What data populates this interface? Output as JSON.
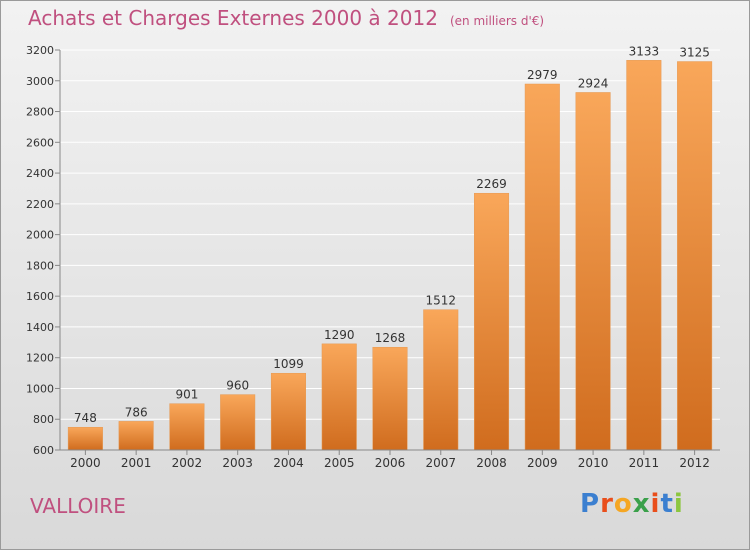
{
  "title": "Achats et Charges Externes 2000 à 2012",
  "subtitle": "(en milliers d'€)",
  "commune": "VALLOIRE",
  "brand": {
    "letters": [
      "P",
      "r",
      "o",
      "x",
      "i",
      "t",
      "i"
    ],
    "colors": [
      "#3b7fd0",
      "#e94e1b",
      "#f5a623",
      "#3aa04a",
      "#e94e1b",
      "#3b7fd0",
      "#8cc63f"
    ]
  },
  "colors": {
    "bar_light": "#f9a75a",
    "bar_dark": "#d06c1e",
    "grid": "#ffffff",
    "axis": "#888888",
    "text": "#333333",
    "accent": "#c0507f"
  },
  "chart_data": {
    "type": "bar",
    "categories": [
      "2000",
      "2001",
      "2002",
      "2003",
      "2004",
      "2005",
      "2006",
      "2007",
      "2008",
      "2009",
      "2010",
      "2011",
      "2012"
    ],
    "values": [
      748,
      786,
      901,
      960,
      1099,
      1290,
      1268,
      1512,
      2269,
      2979,
      2924,
      3133,
      3125
    ],
    "ylim": [
      600,
      3200
    ],
    "yticks": [
      600,
      800,
      1000,
      1200,
      1400,
      1600,
      1800,
      2000,
      2200,
      2400,
      2600,
      2800,
      3000,
      3200
    ],
    "title": "Achats et Charges Externes 2000 à 2012",
    "xlabel": "",
    "ylabel": "",
    "grid": true
  }
}
